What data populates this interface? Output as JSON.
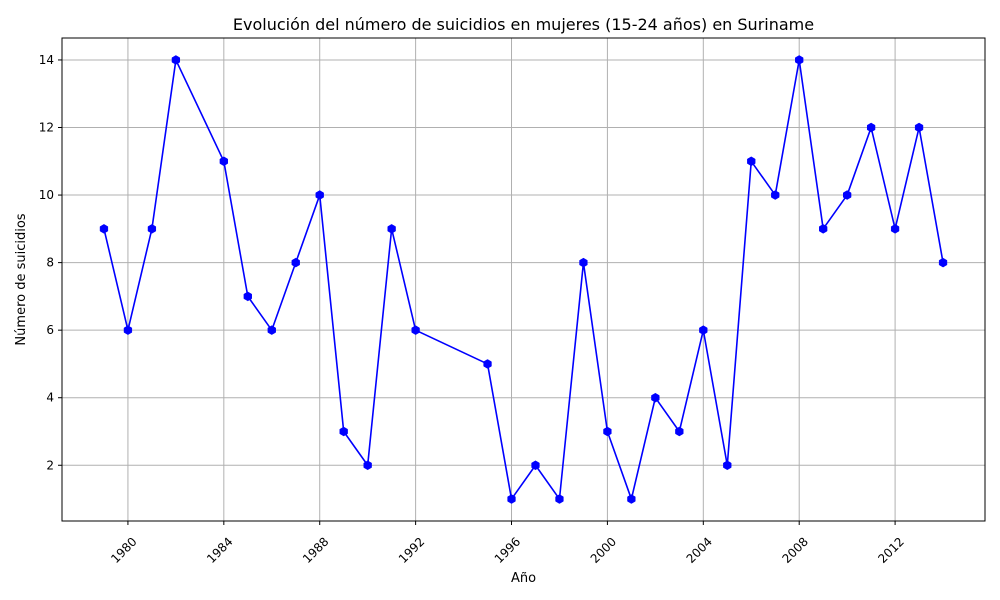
{
  "chart_data": {
    "type": "line",
    "title": "Evolución del número de suicidios en mujeres (15-24 años) en Suriname",
    "xlabel": "Año",
    "ylabel": "Número de suicidios",
    "xlim": [
      1977.25,
      2015.75
    ],
    "ylim": [
      0.35,
      14.65
    ],
    "x_ticks": [
      1980,
      1984,
      1988,
      1992,
      1996,
      2000,
      2004,
      2008,
      2012
    ],
    "y_ticks": [
      2,
      4,
      6,
      8,
      10,
      12,
      14
    ],
    "grid": true,
    "legend": "none",
    "series": [
      {
        "color": "#0000ff",
        "marker": "hexagon",
        "x": [
          1979,
          1980,
          1981,
          1982,
          1984,
          1985,
          1986,
          1987,
          1988,
          1989,
          1990,
          1991,
          1992,
          1995,
          1996,
          1997,
          1998,
          1999,
          2000,
          2001,
          2002,
          2003,
          2004,
          2005,
          2006,
          2007,
          2008,
          2009,
          2010,
          2011,
          2012,
          2013,
          2014
        ],
        "y": [
          9,
          6,
          9,
          14,
          11,
          7,
          6,
          8,
          10,
          3,
          2,
          9,
          6,
          5,
          1,
          2,
          1,
          8,
          3,
          1,
          4,
          3,
          6,
          2,
          11,
          10,
          14,
          9,
          10,
          12,
          9,
          12,
          8
        ]
      }
    ]
  }
}
